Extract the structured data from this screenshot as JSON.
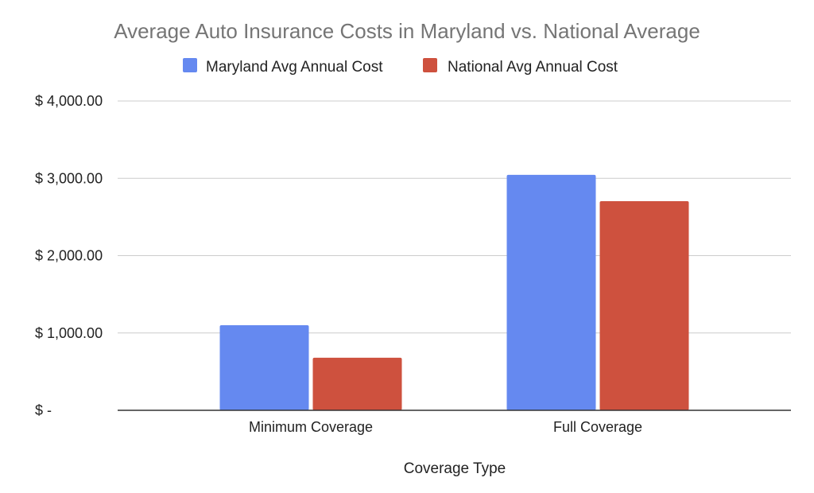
{
  "chart_data": {
    "type": "bar",
    "title": "Average Auto Insurance Costs in Maryland vs. National Average",
    "xlabel": "Coverage Type",
    "ylabel": "",
    "categories": [
      "Minimum Coverage",
      "Full Coverage"
    ],
    "series": [
      {
        "name": "Maryland Avg Annual Cost",
        "color": "#6589F0",
        "values": [
          1100,
          3045
        ]
      },
      {
        "name": "National Avg Annual Cost",
        "color": "#CE513E",
        "values": [
          680,
          2705
        ]
      }
    ],
    "ylim": [
      0,
      4000
    ],
    "yticks": [
      {
        "value": 0,
        "label": "$ -"
      },
      {
        "value": 1000,
        "label": "$ 1,000.00"
      },
      {
        "value": 2000,
        "label": "$ 2,000.00"
      },
      {
        "value": 3000,
        "label": "$ 3,000.00"
      },
      {
        "value": 4000,
        "label": "$ 4,000.00"
      }
    ],
    "grid": true,
    "legend_position": "top"
  }
}
